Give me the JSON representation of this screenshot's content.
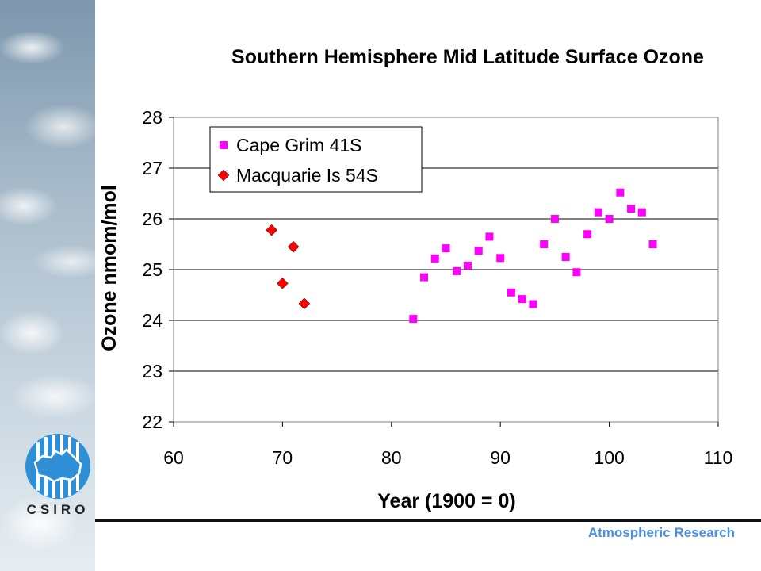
{
  "branding": {
    "logo_text": "CSIRO",
    "footer_text": "Atmospheric Research",
    "footer_color": "#4a90e2"
  },
  "chart_data": {
    "type": "scatter",
    "title": "Southern Hemisphere Mid Latitude Surface Ozone",
    "xlabel": "Year (1900 = 0)",
    "ylabel": "Ozone nmom/mol",
    "xlim": [
      60,
      110
    ],
    "ylim": [
      22,
      28
    ],
    "xticks": [
      "60",
      "70",
      "80",
      "90",
      "100",
      "110"
    ],
    "yticks": [
      "22",
      "23",
      "24",
      "25",
      "26",
      "27",
      "28"
    ],
    "grid": "horizontal",
    "legend_position": "top-left",
    "series": [
      {
        "name": "Cape Grim 41S",
        "marker": "square",
        "color": "#ff00ff",
        "points": [
          [
            82,
            24.03
          ],
          [
            83,
            24.85
          ],
          [
            84,
            25.22
          ],
          [
            85,
            25.42
          ],
          [
            86,
            24.97
          ],
          [
            87,
            25.08
          ],
          [
            88,
            25.37
          ],
          [
            89,
            25.65
          ],
          [
            90,
            25.23
          ],
          [
            91,
            24.55
          ],
          [
            92,
            24.42
          ],
          [
            93,
            24.32
          ],
          [
            94,
            25.5
          ],
          [
            95,
            26.0
          ],
          [
            96,
            25.25
          ],
          [
            97,
            24.95
          ],
          [
            98,
            25.7
          ],
          [
            99,
            26.13
          ],
          [
            100,
            26.0
          ],
          [
            101,
            26.52
          ],
          [
            102,
            26.2
          ],
          [
            103,
            26.13
          ],
          [
            104,
            25.5
          ]
        ]
      },
      {
        "name": "Macquarie Is 54S",
        "marker": "diamond",
        "color": "#ff0000",
        "points": [
          [
            69,
            25.78
          ],
          [
            70,
            24.73
          ],
          [
            71,
            25.45
          ],
          [
            72,
            24.33
          ]
        ]
      }
    ]
  }
}
